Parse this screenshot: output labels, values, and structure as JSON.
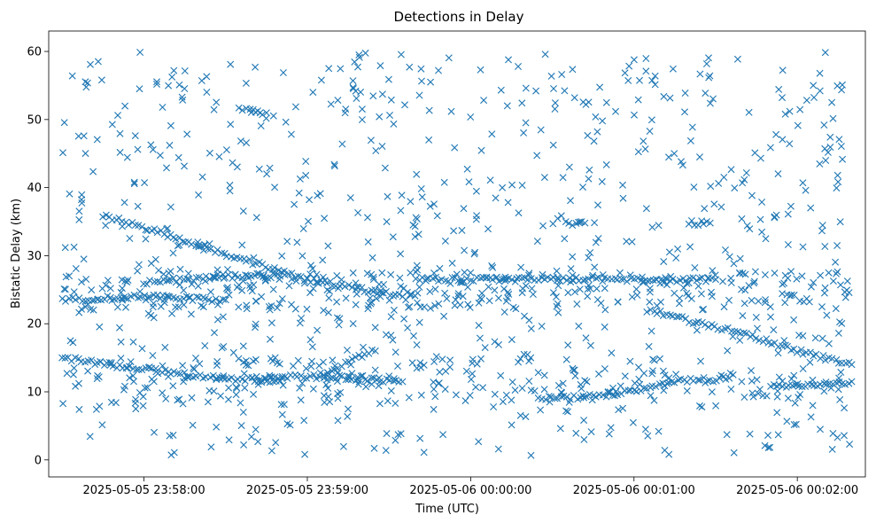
{
  "chart_data": {
    "type": "scatter",
    "title": "Detections in Delay",
    "xlabel": "Time (UTC)",
    "ylabel": "Bistatic Delay (km)",
    "x_unit": "time (UTC)",
    "xlim": [
      "2025-05-05 23:57:25",
      "2025-05-06 00:02:25"
    ],
    "ylim": [
      -2.5,
      63
    ],
    "x_ticks": [
      {
        "time": "2025-05-05 23:58:00",
        "label": "2025-05-05 23:58:00"
      },
      {
        "time": "2025-05-05 23:59:00",
        "label": "2025-05-05 23:59:00"
      },
      {
        "time": "2025-05-06 00:00:00",
        "label": "2025-05-06 00:00:00"
      },
      {
        "time": "2025-05-06 00:01:00",
        "label": "2025-05-06 00:01:00"
      },
      {
        "time": "2025-05-06 00:02:00",
        "label": "2025-05-06 00:02:00"
      }
    ],
    "y_ticks": [
      0,
      10,
      20,
      30,
      40,
      50,
      60
    ],
    "grid": false,
    "legend": "none",
    "marker": "x",
    "color": "#1f77b4",
    "series": [
      {
        "points_note": "detections sampled from the plot",
        "tracks": [
          {
            "points": [
              [
                "2025-05-05 23:57:30",
                15.0
              ],
              [
                "2025-05-05 23:57:50",
                13.8
              ],
              [
                "2025-05-05 23:58:10",
                12.8
              ],
              [
                "2025-05-05 23:58:30",
                12.0
              ],
              [
                "2025-05-05 23:58:50",
                11.6
              ]
            ]
          },
          {
            "points": [
              [
                "2025-05-05 23:57:45",
                36.0
              ],
              [
                "2025-05-05 23:58:05",
                33.5
              ],
              [
                "2025-05-05 23:58:20",
                31.5
              ]
            ]
          },
          {
            "points": [
              [
                "2025-05-05 23:58:20",
                31.5
              ],
              [
                "2025-05-05 23:58:40",
                29.0
              ],
              [
                "2025-05-05 23:59:00",
                26.5
              ],
              [
                "2025-05-05 23:59:20",
                25.0
              ],
              [
                "2025-05-05 23:59:35",
                24.0
              ]
            ]
          },
          {
            "points": [
              [
                "2025-05-05 23:58:40",
                12.0
              ],
              [
                "2025-05-05 23:59:00",
                12.2
              ],
              [
                "2025-05-05 23:59:20",
                12.0
              ],
              [
                "2025-05-05 23:59:35",
                11.5
              ]
            ]
          },
          {
            "points": [
              [
                "2025-05-05 23:59:05",
                12.5
              ],
              [
                "2025-05-05 23:59:15",
                14.5
              ],
              [
                "2025-05-05 23:59:25",
                16.0
              ]
            ]
          },
          {
            "points": [
              [
                "2025-05-05 23:58:35",
                51.5
              ],
              [
                "2025-05-05 23:58:45",
                51.0
              ]
            ]
          },
          {
            "points": [
              [
                "2025-05-06 00:00:25",
                9.0
              ],
              [
                "2025-05-06 00:00:45",
                9.3
              ],
              [
                "2025-05-06 00:01:00",
                10.0
              ],
              [
                "2025-05-06 00:01:15",
                11.5
              ],
              [
                "2025-05-06 00:01:35",
                12.0
              ]
            ]
          },
          {
            "points": [
              [
                "2025-05-06 00:01:05",
                22.0
              ],
              [
                "2025-05-06 00:01:25",
                20.0
              ],
              [
                "2025-05-06 00:01:45",
                18.0
              ],
              [
                "2025-05-06 00:02:00",
                16.0
              ],
              [
                "2025-05-06 00:02:20",
                14.0
              ]
            ]
          },
          {
            "points": [
              [
                "2025-05-06 00:01:50",
                10.8
              ],
              [
                "2025-05-06 00:02:05",
                11.0
              ],
              [
                "2025-05-06 00:02:20",
                11.5
              ]
            ]
          },
          {
            "points": [
              [
                "2025-05-05 23:59:40",
                26.5
              ],
              [
                "2025-05-06 00:00:00",
                26.5
              ],
              [
                "2025-05-06 00:00:20",
                26.5
              ],
              [
                "2025-05-06 00:00:40",
                26.5
              ],
              [
                "2025-05-06 00:01:00",
                26.5
              ],
              [
                "2025-05-06 00:01:30",
                26.5
              ]
            ]
          },
          {
            "points": [
              [
                "2025-05-05 23:57:30",
                23.5
              ],
              [
                "2025-05-05 23:58:00",
                24.0
              ],
              [
                "2025-05-05 23:58:30",
                23.5
              ]
            ]
          },
          {
            "points": [
              [
                "2025-05-05 23:58:00",
                26.0
              ],
              [
                "2025-05-05 23:58:30",
                27.0
              ],
              [
                "2025-05-05 23:58:50",
                27.0
              ]
            ]
          },
          {
            "points": [
              [
                "2025-05-06 00:00:35",
                34.8
              ],
              [
                "2025-05-06 00:00:42",
                34.8
              ]
            ]
          },
          {
            "points": [
              [
                "2025-05-06 00:01:20",
                34.8
              ],
              [
                "2025-05-06 00:01:28",
                34.8
              ]
            ]
          }
        ]
      }
    ]
  }
}
